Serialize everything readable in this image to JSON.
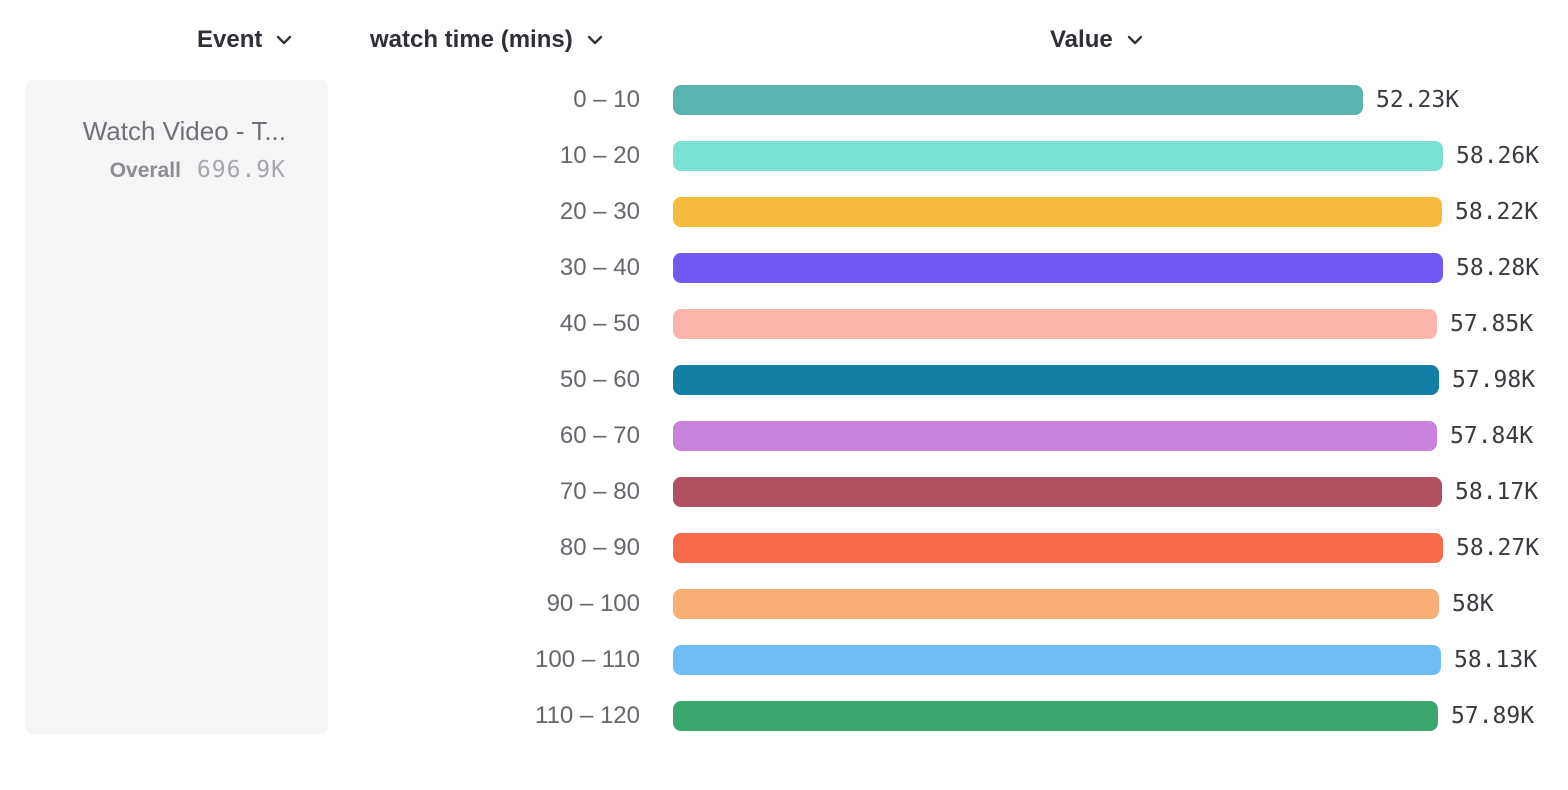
{
  "header": {
    "event_label": "Event",
    "dimension_label": "watch time (mins)",
    "value_label": "Value"
  },
  "event_card": {
    "title": "Watch Video - T...",
    "overall_label": "Overall",
    "overall_value": "696.9K"
  },
  "chart_data": {
    "type": "bar",
    "orientation": "horizontal",
    "title": "",
    "xlabel": "Value",
    "ylabel": "watch time (mins)",
    "xlim": [
      0,
      58280
    ],
    "grid": false,
    "categories": [
      "0 – 10",
      "10 – 20",
      "20 – 30",
      "30 – 40",
      "40 – 50",
      "50 – 60",
      "60 – 70",
      "70 – 80",
      "80 – 90",
      "90 – 100",
      "100 – 110",
      "110 – 120"
    ],
    "values": [
      52230,
      58260,
      58220,
      58280,
      57850,
      57980,
      57840,
      58170,
      58270,
      58000,
      58130,
      57890
    ],
    "value_labels": [
      "52.23K",
      "58.26K",
      "58.22K",
      "58.28K",
      "57.85K",
      "57.98K",
      "57.84K",
      "58.17K",
      "58.27K",
      "58K",
      "58.13K",
      "57.89K"
    ],
    "colors": [
      "#5BB5AF",
      "#7CE2D3",
      "#F6BA3C",
      "#7458F5",
      "#FBB5AB",
      "#147FA5",
      "#C983DC",
      "#B04F60",
      "#FA6B4B",
      "#F9AE75",
      "#70BCF4",
      "#3CA670"
    ]
  }
}
